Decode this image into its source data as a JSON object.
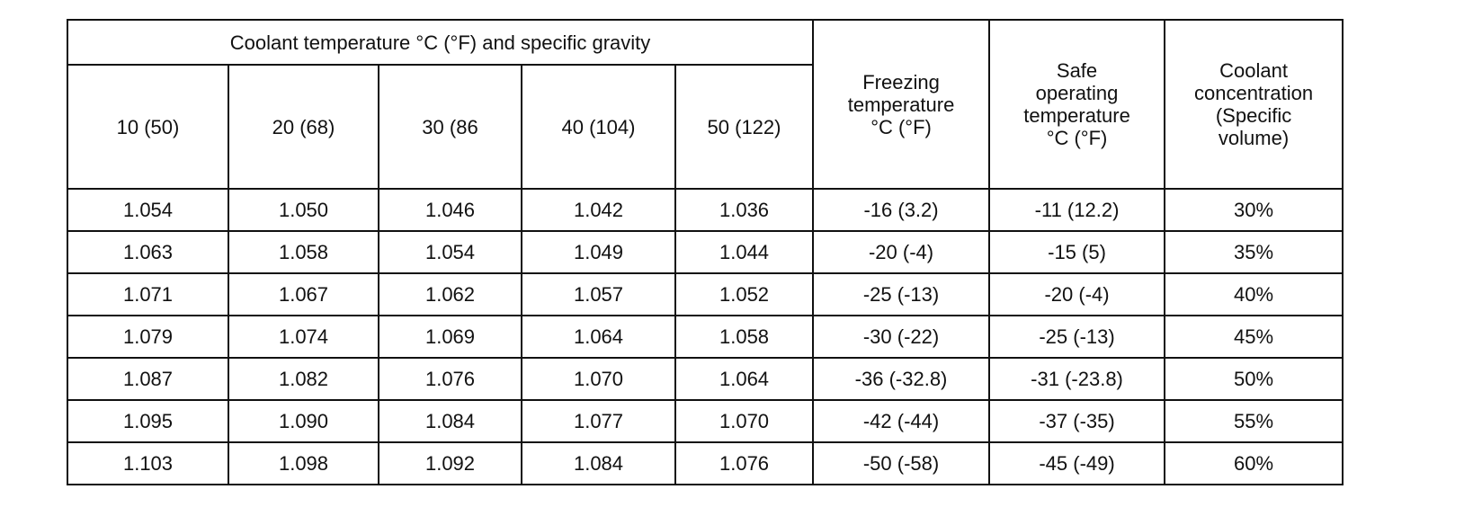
{
  "header": {
    "group_title": "Coolant temperature °C (°F) and specific gravity",
    "columns": [
      "10 (50)",
      "20 (68)",
      "30 (86",
      "40 (104)",
      "50 (122)",
      "Freezing\ntemperature\n°C (°F)",
      "Safe\noperating\ntemperature\n°C (°F)",
      "Coolant\nconcentration\n(Specific\nvolume)"
    ]
  },
  "table": {
    "rows": [
      [
        "1.054",
        "1.050",
        "1.046",
        "1.042",
        "1.036",
        "-16 (3.2)",
        "-11 (12.2)",
        "30%"
      ],
      [
        "1.063",
        "1.058",
        "1.054",
        "1.049",
        "1.044",
        "-20 (-4)",
        "-15 (5)",
        "35%"
      ],
      [
        "1.071",
        "1.067",
        "1.062",
        "1.057",
        "1.052",
        "-25 (-13)",
        "-20 (-4)",
        "40%"
      ],
      [
        "1.079",
        "1.074",
        "1.069",
        "1.064",
        "1.058",
        "-30 (-22)",
        "-25 (-13)",
        "45%"
      ],
      [
        "1.087",
        "1.082",
        "1.076",
        "1.070",
        "1.064",
        "-36 (-32.8)",
        "-31 (-23.8)",
        "50%"
      ],
      [
        "1.095",
        "1.090",
        "1.084",
        "1.077",
        "1.070",
        "-42 (-44)",
        "-37 (-35)",
        "55%"
      ],
      [
        "1.103",
        "1.098",
        "1.092",
        "1.084",
        "1.076",
        "-50 (-58)",
        "-45 (-49)",
        "60%"
      ]
    ]
  }
}
